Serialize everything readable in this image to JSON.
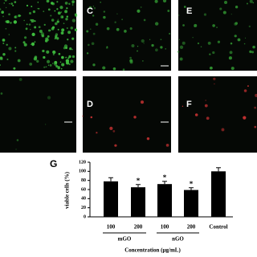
{
  "panels": {
    "labels": [
      "C",
      "E",
      "D",
      "F"
    ]
  },
  "chart_data": {
    "type": "bar",
    "panel_label": "G",
    "ylabel": "viable cells (%)",
    "xlabel": "Concentration (µg/mL)",
    "categories": [
      "100",
      "200",
      "100",
      "200",
      "Control"
    ],
    "groups": [
      "mGO",
      "nGO"
    ],
    "values": [
      78,
      65,
      72,
      59,
      100
    ],
    "errors": [
      8,
      6,
      6,
      5,
      8
    ],
    "value_labels": [
      null,
      "*",
      "*",
      "*",
      null
    ],
    "color": "#000000",
    "ylim": [
      0,
      120
    ],
    "yticks": [
      0,
      20,
      40,
      60,
      80,
      100,
      120
    ]
  }
}
